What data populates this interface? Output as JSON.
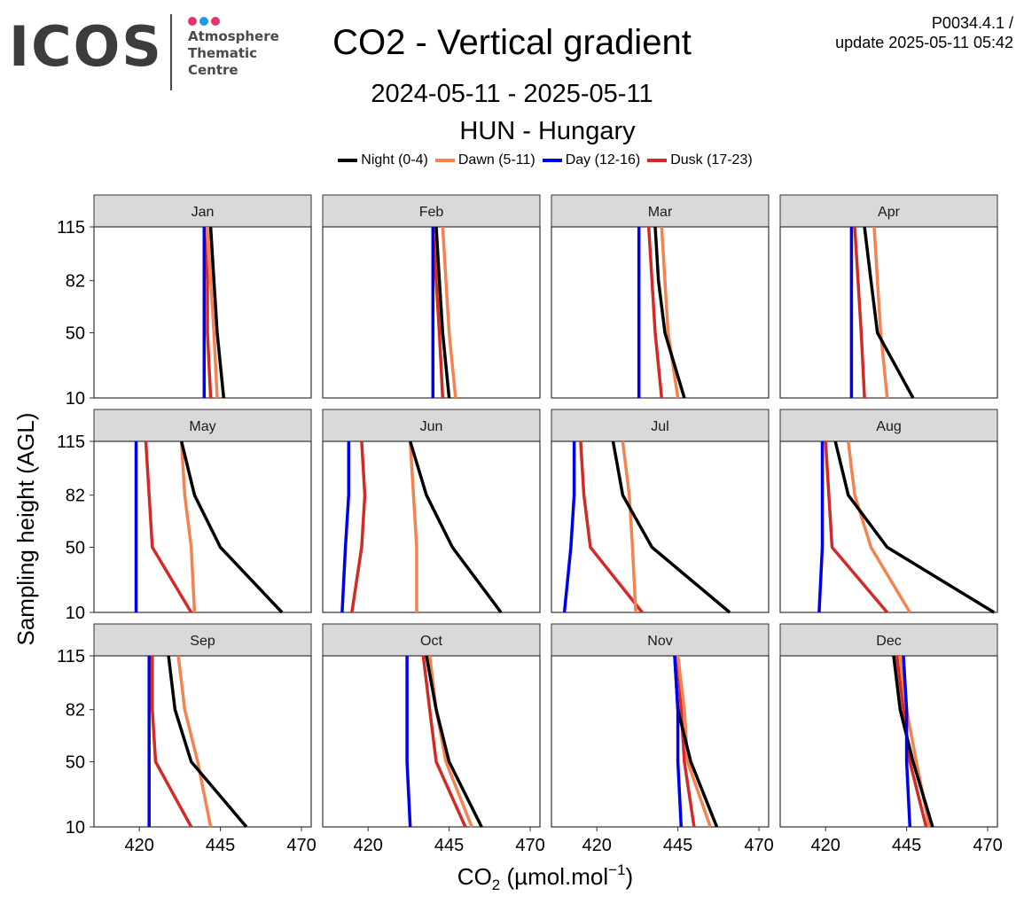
{
  "header": {
    "logo": {
      "word": "ICOS",
      "lines": [
        "Atmosphere",
        "Thematic",
        "Centre"
      ],
      "dot_colors": [
        "#e6336f",
        "#1e9be0",
        "#e6336f"
      ]
    },
    "title": "CO2 - Vertical gradient",
    "date_range": "2024-05-11 - 2025-05-11",
    "station": "HUN - Hungary",
    "version_line1": "P0034.4.1 /",
    "version_line2": "update  2025-05-11 05:42"
  },
  "colors": {
    "night": "#000000",
    "dawn": "#f5824f",
    "day": "#0000ee",
    "dusk": "#d32a26",
    "strip_bg": "#d9d9d9",
    "panel_border": "#333333"
  },
  "chart_data": {
    "type": "line",
    "layout": "facet-grid 3x4",
    "ylabel": "Sampling height (AGL)",
    "xlabel_main": "CO",
    "xlabel_sub": "2",
    "xlabel_rest": " (µmol.mol",
    "xlabel_sup": "−1",
    "xlabel_end": ")",
    "xlim": [
      406,
      473
    ],
    "xticks": [
      420,
      445,
      470
    ],
    "heights": [
      10,
      50,
      82,
      115
    ],
    "ytick_labels": [
      "10",
      "50",
      "82",
      "115"
    ],
    "legend_position": "top",
    "series_names": [
      "Night (0-4)",
      "Dawn (5-11)",
      "Day (12-16)",
      "Dusk (17-23)"
    ],
    "series_keys": [
      "night",
      "dawn",
      "day",
      "dusk"
    ],
    "panels": [
      {
        "month": "Jan",
        "night": [
          446.0,
          444.0,
          443.0,
          442.0
        ],
        "dawn": [
          444.0,
          443.0,
          442.0,
          441.0
        ],
        "day": [
          440.0,
          440.0,
          440.0,
          440.0
        ],
        "dusk": [
          442.0,
          441.0,
          441.0,
          440.0
        ]
      },
      {
        "month": "Feb",
        "night": [
          445.0,
          443.0,
          442.0,
          441.0
        ],
        "dawn": [
          447.0,
          445.0,
          444.0,
          443.0
        ],
        "day": [
          440.0,
          440.0,
          440.0,
          440.0
        ],
        "dusk": [
          443.0,
          442.0,
          441.0,
          440.0
        ]
      },
      {
        "month": "Mar",
        "night": [
          447.0,
          441.0,
          439.0,
          438.0
        ],
        "dawn": [
          445.0,
          442.0,
          441.0,
          440.0
        ],
        "day": [
          433.0,
          433.0,
          433.0,
          433.0
        ],
        "dusk": [
          440.0,
          438.0,
          437.0,
          436.0
        ]
      },
      {
        "month": "Apr",
        "night": [
          447.0,
          436.0,
          434.0,
          432.0
        ],
        "dawn": [
          439.0,
          437.0,
          436.0,
          435.0
        ],
        "day": [
          428.0,
          428.0,
          428.0,
          428.0
        ],
        "dusk": [
          432.0,
          431.0,
          430.0,
          429.0
        ]
      },
      {
        "month": "May",
        "night": [
          464.0,
          445.0,
          437.0,
          433.0
        ],
        "dawn": [
          437.0,
          436.0,
          434.0,
          433.0
        ],
        "day": [
          419.0,
          419.0,
          419.0,
          419.0
        ],
        "dusk": [
          436.0,
          424.0,
          423.0,
          422.0
        ]
      },
      {
        "month": "Jun",
        "night": [
          461.0,
          446.0,
          438.0,
          433.0
        ],
        "dawn": [
          435.0,
          435.0,
          434.0,
          433.0
        ],
        "day": [
          412.0,
          413.0,
          414.0,
          414.0
        ],
        "dusk": [
          415.0,
          418.0,
          419.0,
          418.0
        ]
      },
      {
        "month": "Jul",
        "night": [
          461.0,
          437.0,
          428.0,
          425.0
        ],
        "dawn": [
          432.0,
          431.0,
          430.0,
          428.0
        ],
        "day": [
          410.0,
          412.0,
          413.0,
          413.0
        ],
        "dusk": [
          434.0,
          418.0,
          416.0,
          415.0
        ]
      },
      {
        "month": "Aug",
        "night": [
          472.0,
          439.0,
          427.0,
          423.0
        ],
        "dawn": [
          446.0,
          434.0,
          429.0,
          427.0
        ],
        "day": [
          418.0,
          419.0,
          419.0,
          419.0
        ],
        "dusk": [
          439.0,
          422.0,
          421.0,
          420.0
        ]
      },
      {
        "month": "Sep",
        "night": [
          453.0,
          436.0,
          431.0,
          429.0
        ],
        "dawn": [
          442.0,
          438.0,
          434.0,
          432.0
        ],
        "day": [
          423.0,
          423.0,
          423.0,
          423.0
        ],
        "dusk": [
          436.0,
          425.0,
          424.0,
          424.0
        ]
      },
      {
        "month": "Oct",
        "night": [
          455.0,
          445.0,
          441.0,
          438.0
        ],
        "dawn": [
          452.0,
          444.0,
          441.0,
          439.0
        ],
        "day": [
          433.0,
          432.0,
          432.0,
          432.0
        ],
        "dusk": [
          450.0,
          441.0,
          439.0,
          437.0
        ]
      },
      {
        "month": "Nov",
        "night": [
          457.0,
          449.0,
          445.0,
          444.0
        ],
        "dawn": [
          455.0,
          448.0,
          447.0,
          445.0
        ],
        "day": [
          446.0,
          445.0,
          445.0,
          444.0
        ],
        "dusk": [
          450.0,
          447.0,
          446.0,
          445.0
        ]
      },
      {
        "month": "Dec",
        "night": [
          453.0,
          447.0,
          443.0,
          441.0
        ],
        "dawn": [
          452.0,
          448.0,
          445.0,
          443.0
        ],
        "day": [
          446.0,
          445.0,
          445.0,
          444.0
        ],
        "dusk": [
          451.0,
          446.0,
          444.0,
          442.0
        ]
      }
    ]
  }
}
